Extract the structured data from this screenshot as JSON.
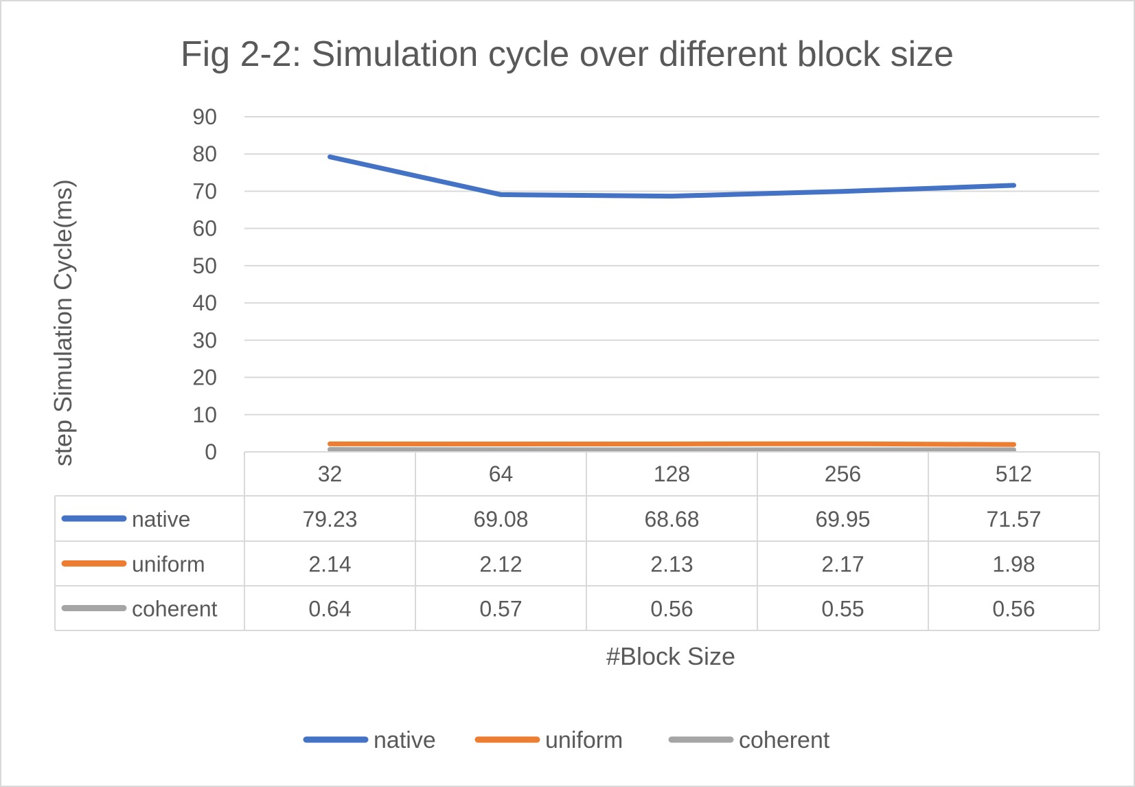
{
  "chart_data": {
    "type": "line",
    "title": "Fig 2-2: Simulation cycle over different block size",
    "xlabel": "#Block Size",
    "ylabel": "step Simulation Cycle(ms)",
    "categories": [
      "32",
      "64",
      "128",
      "256",
      "512"
    ],
    "ylim": [
      0,
      90
    ],
    "yticks": [
      "0",
      "10",
      "20",
      "30",
      "40",
      "50",
      "60",
      "70",
      "80",
      "90"
    ],
    "grid": true,
    "legend_position": "bottom",
    "data_table": true,
    "series": [
      {
        "name": "native",
        "color": "#4472C4",
        "values": [
          79.23,
          69.08,
          68.68,
          69.95,
          71.57
        ],
        "labels": [
          "79.23",
          "69.08",
          "68.68",
          "69.95",
          "71.57"
        ]
      },
      {
        "name": "uniform",
        "color": "#ED7D31",
        "values": [
          2.14,
          2.12,
          2.13,
          2.17,
          1.98
        ],
        "labels": [
          "2.14",
          "2.12",
          "2.13",
          "2.17",
          "1.98"
        ]
      },
      {
        "name": "coherent",
        "color": "#A5A5A5",
        "values": [
          0.64,
          0.57,
          0.56,
          0.55,
          0.56
        ],
        "labels": [
          "0.64",
          "0.57",
          "0.56",
          "0.55",
          "0.56"
        ]
      }
    ]
  }
}
